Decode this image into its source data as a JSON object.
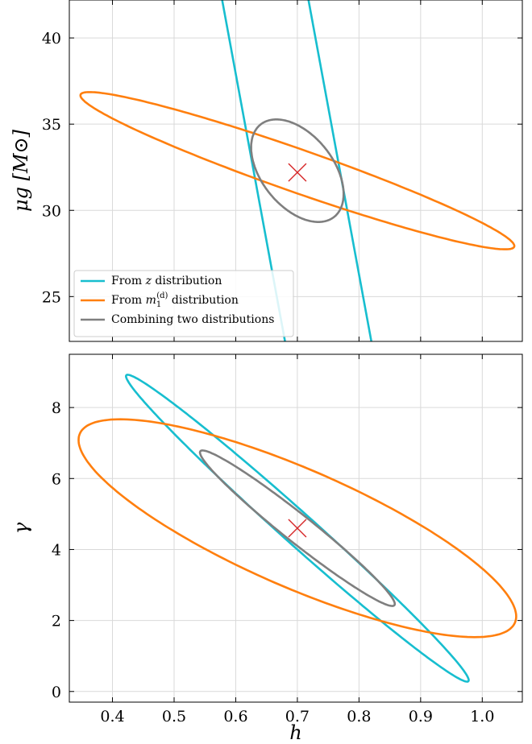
{
  "colors": {
    "from_z": "#17becf",
    "from_m1": "#ff7f0e",
    "combined": "#7f7f7f",
    "truth_marker": "#d62728"
  },
  "chart_data": [
    {
      "type": "contour",
      "panel": "top",
      "xlim": [
        0.33,
        1.065
      ],
      "ylim": [
        22.4,
        42.2
      ],
      "xticks": [
        0.4,
        0.5,
        0.6,
        0.7,
        0.8,
        0.9,
        1.0
      ],
      "yticks": [
        25,
        30,
        35,
        40
      ],
      "ytick_labels": [
        "25",
        "30",
        "35",
        "40"
      ],
      "xlabel": "",
      "ylabel": "μg [M⊙]",
      "grid": true,
      "truth": {
        "x": 0.7,
        "y": 32.2
      },
      "series": [
        {
          "name": "From z distribution",
          "color_key": "from_z",
          "kind": "lines",
          "lines": [
            [
              [
                0.578,
                42.2
              ],
              [
                0.68,
                22.4
              ]
            ],
            [
              [
                0.718,
                42.2
              ],
              [
                0.82,
                22.4
              ]
            ]
          ]
        },
        {
          "name": "From m1(d) distribution",
          "color_key": "from_m1",
          "kind": "ellipse",
          "center": [
            0.7,
            32.3
          ],
          "semi_a": 0.352,
          "semi_b": 1.32,
          "slope": -12.4
        },
        {
          "name": "Combining two distributions",
          "color_key": "combined",
          "kind": "ellipse",
          "center": [
            0.7,
            32.3
          ],
          "semi_a": 0.075,
          "semi_b": 2.65,
          "slope": -18.0
        }
      ],
      "legend": {
        "placement": "lower-left",
        "entries": [
          {
            "prefix": "From ",
            "math": "z",
            "suffix": " distribution",
            "color_key": "from_z"
          },
          {
            "prefix": "From ",
            "math": "m",
            "sub": "1",
            "sup": "(d)",
            "suffix": " distribution",
            "color_key": "from_m1"
          },
          {
            "prefix": "Combining two distributions",
            "math": "",
            "suffix": "",
            "color_key": "combined"
          }
        ]
      }
    },
    {
      "type": "contour",
      "panel": "bottom",
      "xlim": [
        0.33,
        1.065
      ],
      "ylim": [
        -0.3,
        9.5
      ],
      "xticks": [
        0.4,
        0.5,
        0.6,
        0.7,
        0.8,
        0.9,
        1.0
      ],
      "xtick_labels": [
        "0.4",
        "0.5",
        "0.6",
        "0.7",
        "0.8",
        "0.9",
        "1.0"
      ],
      "yticks": [
        0,
        2,
        4,
        6,
        8
      ],
      "ytick_labels": [
        "0",
        "2",
        "4",
        "6",
        "8"
      ],
      "xlabel": "h",
      "ylabel": "γ",
      "grid": true,
      "truth": {
        "x": 0.7,
        "y": 4.6
      },
      "series": [
        {
          "name": "From z distribution",
          "color_key": "from_z",
          "kind": "ellipse",
          "center": [
            0.7,
            4.6
          ],
          "semi_a": 0.278,
          "semi_b": 0.6,
          "slope": -15.4
        },
        {
          "name": "From m1(d) distribution",
          "color_key": "from_m1",
          "kind": "ellipse",
          "center": [
            0.7,
            4.6
          ],
          "semi_a": 0.355,
          "semi_b": 1.8,
          "slope": -7.0
        },
        {
          "name": "Combining two distributions",
          "color_key": "combined",
          "kind": "ellipse",
          "center": [
            0.7,
            4.6
          ],
          "semi_a": 0.158,
          "semi_b": 0.5,
          "slope": -13.5
        }
      ]
    }
  ]
}
